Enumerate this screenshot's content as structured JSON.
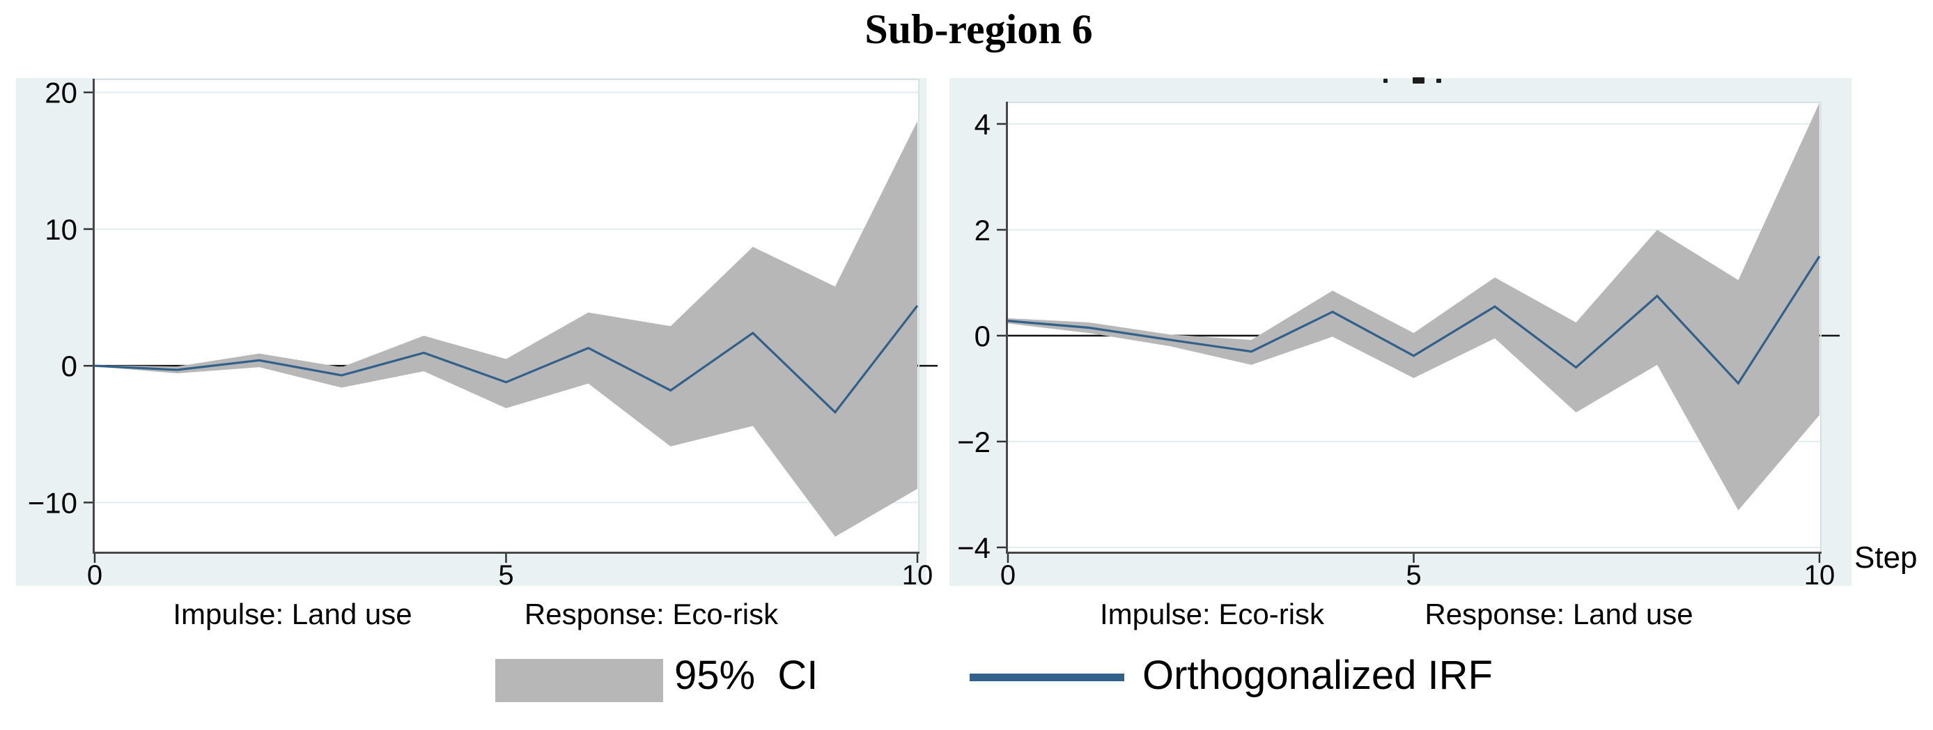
{
  "title": "Sub-region 6",
  "step_axis_label": "Step",
  "legend": {
    "ci_label": "95%  CI",
    "irf_label": "Orthogonalized IRF",
    "ci_color": "#b7b7b7",
    "irf_color": "#31608a"
  },
  "colors": {
    "panel_bg": "#eaf1f3",
    "plot_bg": "#ffffff",
    "gridline": "#e2edef",
    "axis_dark": "#474747",
    "frame_light": "#d6e1e4",
    "tick": "#333333",
    "tick_text": "#000000",
    "zero_line": "#111111",
    "band": "#b7b7b7",
    "line": "#31608a"
  },
  "chart_data": [
    {
      "type": "line",
      "panel": "left",
      "impulse_label": "Impulse: Land use",
      "response_label": "Response: Eco-risk",
      "xlabel": "Step",
      "steps": [
        0,
        1,
        2,
        3,
        4,
        5,
        6,
        7,
        8,
        9,
        10
      ],
      "irf": [
        0.0,
        -0.3,
        0.4,
        -0.7,
        0.95,
        -1.2,
        1.3,
        -1.8,
        2.4,
        -3.4,
        4.4
      ],
      "ci_upper": [
        0.05,
        -0.05,
        0.9,
        -0.1,
        2.2,
        0.5,
        3.9,
        2.9,
        8.7,
        5.8,
        17.9
      ],
      "ci_lower": [
        -0.05,
        -0.55,
        -0.1,
        -1.6,
        -0.4,
        -3.1,
        -1.3,
        -5.9,
        -4.4,
        -12.5,
        -9.0
      ],
      "x_ticks": [
        0,
        5,
        10
      ],
      "y_ticks": [
        -10,
        0,
        10,
        20
      ],
      "xlim": [
        0,
        10
      ],
      "ylim": [
        -13.75,
        21.0
      ],
      "grid": true,
      "zero_line": true
    },
    {
      "type": "line",
      "panel": "right",
      "impulse_label": "Impulse: Eco-risk",
      "response_label": "Response: Land use",
      "xlabel": "Step",
      "steps": [
        0,
        1,
        2,
        3,
        4,
        5,
        6,
        7,
        8,
        9,
        10
      ],
      "irf": [
        0.28,
        0.15,
        -0.08,
        -0.3,
        0.45,
        -0.38,
        0.55,
        -0.6,
        0.75,
        -0.9,
        1.5
      ],
      "ci_upper": [
        0.33,
        0.25,
        0.02,
        -0.08,
        0.85,
        0.05,
        1.1,
        0.25,
        2.0,
        1.05,
        4.4
      ],
      "ci_lower": [
        0.23,
        0.05,
        -0.2,
        -0.55,
        -0.02,
        -0.8,
        -0.05,
        -1.45,
        -0.55,
        -3.3,
        -1.5
      ],
      "x_ticks": [
        0,
        5,
        10
      ],
      "y_ticks": [
        -4,
        -2,
        0,
        2,
        4
      ],
      "xlim": [
        0,
        10
      ],
      "ylim": [
        -4.12,
        4.42
      ],
      "grid": true,
      "zero_line": true
    }
  ]
}
